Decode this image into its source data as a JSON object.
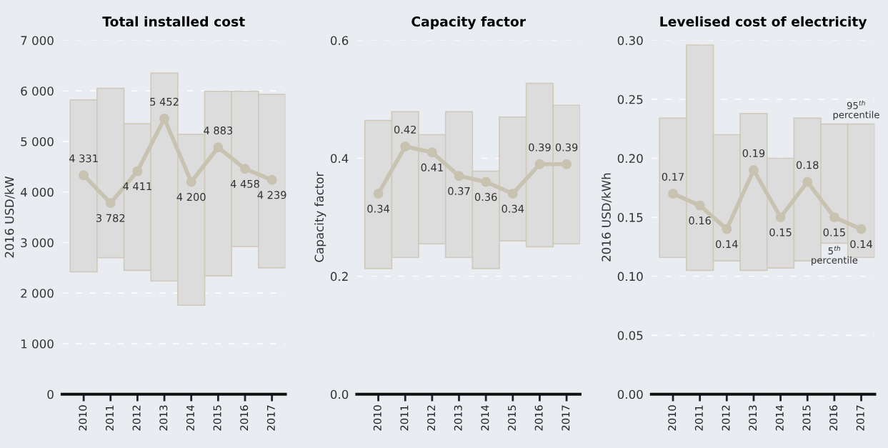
{
  "chart_data": [
    {
      "type": "bar",
      "title": "Total installed cost",
      "ylabel": "2016 USD/kW",
      "categories": [
        "2010",
        "2011",
        "2012",
        "2013",
        "2014",
        "2015",
        "2016",
        "2017"
      ],
      "series": [
        {
          "color": "#dcdcdc",
          "base": [
            2420,
            2700,
            2450,
            2240,
            1760,
            2340,
            2920,
            2500
          ],
          "values": [
            3400,
            3350,
            2900,
            4110,
            3380,
            3650,
            3070,
            3430
          ]
        },
        {
          "type": "line",
          "color": "#c8c2b0",
          "marker": "circle",
          "values": [
            4331,
            3782,
            4411,
            5452,
            4200,
            4883,
            4458,
            4239
          ],
          "value_labels": [
            "4 331",
            "3 782",
            "4 411",
            "5 452",
            "4 200",
            "4 883",
            "4 458",
            "4 239"
          ]
        }
      ],
      "ylim": [
        0,
        7000
      ],
      "yticks": [
        {
          "value": 0,
          "label": "0"
        },
        {
          "value": 1000,
          "label": "1 000"
        },
        {
          "value": 2000,
          "label": "2 000"
        },
        {
          "value": 3000,
          "label": "3 000"
        },
        {
          "value": 4000,
          "label": "4 000"
        },
        {
          "value": 5000,
          "label": "5 000"
        },
        {
          "value": 6000,
          "label": "6 000"
        },
        {
          "value": 7000,
          "label": "7 000"
        }
      ],
      "grid": "y"
    },
    {
      "type": "bar",
      "title": "Capacity factor",
      "ylabel": "Capacity factor",
      "categories": [
        "2010",
        "2011",
        "2012",
        "2013",
        "2014",
        "2015",
        "2016",
        "2017"
      ],
      "series": [
        {
          "color": "#dcdcdc",
          "base": [
            0.213,
            0.232,
            0.255,
            0.232,
            0.213,
            0.26,
            0.25,
            0.255
          ],
          "values": [
            0.251,
            0.247,
            0.185,
            0.247,
            0.165,
            0.21,
            0.277,
            0.235
          ]
        },
        {
          "type": "line",
          "color": "#c8c2b0",
          "marker": "circle",
          "values": [
            0.34,
            0.42,
            0.41,
            0.37,
            0.36,
            0.34,
            0.39,
            0.39
          ],
          "value_labels": [
            "0.34",
            "0.42",
            "0.41",
            "0.37",
            "0.36",
            "0.34",
            "0.39",
            "0.39"
          ]
        }
      ],
      "ylim": [
        0,
        0.6
      ],
      "yticks": [
        {
          "value": 0,
          "label": "0.0"
        },
        {
          "value": 0.2,
          "label": "0.2"
        },
        {
          "value": 0.4,
          "label": "0.4"
        },
        {
          "value": 0.6,
          "label": "0.6"
        }
      ],
      "grid": "y"
    },
    {
      "type": "bar",
      "title": "Levelised cost of electricity",
      "ylabel": "2016 USD/kWh",
      "categories": [
        "2010",
        "2011",
        "2012",
        "2013",
        "2014",
        "2015",
        "2016",
        "2017"
      ],
      "series": [
        {
          "color": "#dcdcdc",
          "base": [
            0.116,
            0.105,
            0.113,
            0.105,
            0.107,
            0.113,
            0.128,
            0.116
          ],
          "values": [
            0.118,
            0.191,
            0.107,
            0.133,
            0.093,
            0.121,
            0.101,
            0.113
          ]
        },
        {
          "type": "line",
          "color": "#c8c2b0",
          "marker": "circle",
          "values": [
            0.17,
            0.16,
            0.14,
            0.19,
            0.15,
            0.18,
            0.15,
            0.14
          ],
          "value_labels": [
            "0.17",
            "0.16",
            "0.14",
            "0.19",
            "0.15",
            "0.18",
            "0.15",
            "0.14"
          ]
        }
      ],
      "annotations": [
        {
          "text": "95$^{th}$\npercentile",
          "x": "2016",
          "y": 0.229
        },
        {
          "text": "5$^{th}$\npercentile",
          "x": "2016",
          "y": 0.128
        }
      ],
      "ylim": [
        0,
        0.3
      ],
      "yticks": [
        {
          "value": 0,
          "label": "0.00"
        },
        {
          "value": 0.05,
          "label": "0.05"
        },
        {
          "value": 0.1,
          "label": "0.10"
        },
        {
          "value": 0.15,
          "label": "0.15"
        },
        {
          "value": 0.2,
          "label": "0.20"
        },
        {
          "value": 0.25,
          "label": "0.25"
        },
        {
          "value": 0.3,
          "label": "0.30"
        }
      ],
      "grid": "y"
    }
  ]
}
